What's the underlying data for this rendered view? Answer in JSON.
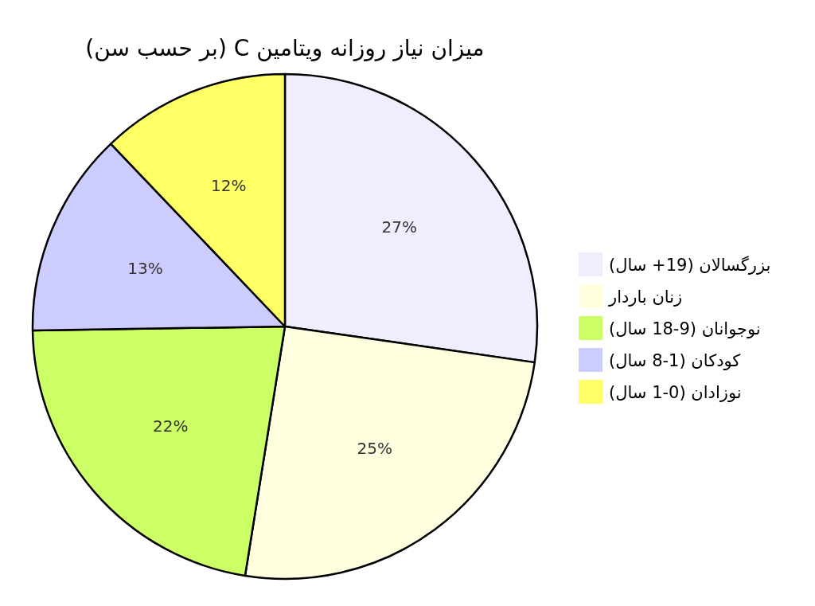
{
  "chart_data": {
    "type": "pie",
    "title": "میزان نیاز روزانه ویتامین C (بر حسب سن)",
    "categories": [
      "بزرگسالان (19+ سال)",
      "زنان باردار",
      "نوجوانان (9-18 سال)",
      "کودکان (1-8 سال)",
      "نوزادان (0-1 سال)"
    ],
    "values": [
      27,
      25,
      22,
      13,
      12
    ],
    "colors": [
      "#eeeeff",
      "#ffffe0",
      "#ccff66",
      "#ccccff",
      "#ffff66"
    ],
    "value_labels": [
      "27%",
      "25%",
      "22%",
      "13%",
      "12%"
    ],
    "legend": "right"
  }
}
